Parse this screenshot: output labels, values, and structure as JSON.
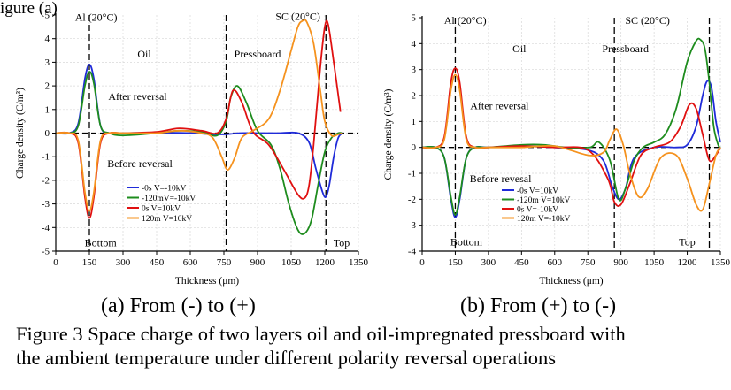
{
  "page_top_text": "igure  (a)",
  "captions": {
    "a": "(a) From (-) to (+)",
    "b": "(b) From (+) to (-)",
    "figure_line1": "Figure 3 Space charge of two layers oil and oil-impregnated pressboard with",
    "figure_line2": "the ambient temperature under different polarity reversal operations"
  },
  "colors": {
    "blue": "#1f2bd9",
    "green": "#1e8c1e",
    "red": "#e01010",
    "orange": "#f5921e"
  },
  "chart_data": [
    {
      "type": "line",
      "panel": "a",
      "xlabel": "Thickness (μm)",
      "ylabel": "Charge density (C/m³)",
      "xlim": [
        0,
        1350
      ],
      "ylim": [
        -5,
        5
      ],
      "xticks": [
        0,
        150,
        300,
        450,
        600,
        750,
        900,
        1050,
        1200,
        1350
      ],
      "yticks": [
        -5,
        -4,
        -3,
        -2,
        -1,
        0,
        1,
        2,
        3,
        4,
        5
      ],
      "vlines": [
        150,
        760,
        1205
      ],
      "annotations": [
        {
          "text": "Al (20°C)",
          "x": 180,
          "y": 4.9
        },
        {
          "text": "SC (20°C)",
          "x": 1080,
          "y": 4.95
        },
        {
          "text": "Oil",
          "x": 395,
          "y": 3.35
        },
        {
          "text": "Pressboard",
          "x": 900,
          "y": 3.35
        },
        {
          "text": "After reversal",
          "x": 365,
          "y": 1.55
        },
        {
          "text": "Before reversal",
          "x": 375,
          "y": -1.3
        },
        {
          "text": "Bottom",
          "x": 200,
          "y": -4.65
        },
        {
          "text": "Top",
          "x": 1275,
          "y": -4.65
        }
      ],
      "legend": {
        "placement": "bottom-center",
        "entries": [
          "-0s    V=-10kV",
          "-120mV=-10kV",
          "0s     V=10kV",
          "120m  V=10kV"
        ]
      },
      "series": [
        {
          "color": "blue",
          "x": [
            0,
            60,
            100,
            130,
            150,
            170,
            200,
            240,
            300,
            450,
            600,
            700,
            760,
            820,
            900,
            1000,
            1080,
            1130,
            1160,
            1190,
            1205,
            1220,
            1240,
            1260,
            1280
          ],
          "y": [
            0,
            0,
            0.4,
            2.3,
            2.9,
            2.3,
            0.3,
            0,
            0,
            0.02,
            0,
            -0.05,
            -0.05,
            0,
            0,
            0,
            0,
            -0.4,
            -1.5,
            -2.5,
            -2.7,
            -2.2,
            -1.0,
            -0.2,
            0
          ]
        },
        {
          "color": "green",
          "x": [
            0,
            60,
            100,
            130,
            150,
            170,
            200,
            240,
            300,
            450,
            550,
            650,
            720,
            760,
            780,
            810,
            850,
            900,
            960,
            1000,
            1040,
            1080,
            1110,
            1140,
            1170,
            1200,
            1230,
            1260,
            1280
          ],
          "y": [
            0,
            0,
            0.3,
            2.0,
            2.6,
            2.1,
            0.3,
            0,
            -0.1,
            0,
            0.1,
            0.05,
            -0.1,
            0.5,
            1.5,
            2.0,
            1.3,
            0.1,
            -0.5,
            -1.5,
            -3.0,
            -4.1,
            -4.25,
            -3.7,
            -2.2,
            -0.8,
            -0.2,
            0,
            0
          ]
        },
        {
          "color": "red",
          "x": [
            0,
            60,
            100,
            130,
            150,
            170,
            200,
            240,
            300,
            450,
            550,
            650,
            720,
            760,
            790,
            830,
            880,
            950,
            1020,
            1080,
            1110,
            1130,
            1150,
            1180,
            1200,
            1215,
            1240,
            1270
          ],
          "y": [
            0,
            0,
            -0.4,
            -2.7,
            -3.6,
            -2.7,
            -0.4,
            0,
            0,
            0.05,
            0.2,
            0.1,
            0,
            0.6,
            1.8,
            1.3,
            0.05,
            -0.5,
            -1.6,
            -2.6,
            -2.75,
            -2.2,
            -0.5,
            2.8,
            4.5,
            4.6,
            3.0,
            0.9
          ]
        },
        {
          "color": "orange",
          "x": [
            0,
            60,
            100,
            130,
            150,
            170,
            200,
            240,
            300,
            450,
            550,
            650,
            700,
            740,
            760,
            775,
            800,
            830,
            880,
            950,
            1000,
            1050,
            1080,
            1100,
            1120,
            1150,
            1180,
            1200,
            1230,
            1260,
            1280
          ],
          "y": [
            0,
            0,
            -0.3,
            -2.5,
            -3.3,
            -2.5,
            -0.3,
            0,
            0,
            0,
            0.1,
            0,
            -0.2,
            -1.0,
            -1.5,
            -1.5,
            -1.0,
            -0.2,
            0.1,
            0.6,
            1.8,
            3.5,
            4.5,
            4.75,
            4.7,
            3.8,
            1.8,
            0.5,
            -0.1,
            -0.05,
            0
          ]
        }
      ]
    },
    {
      "type": "line",
      "panel": "b",
      "xlabel": "Thickness (μm)",
      "ylabel": "Charge density (C/m³)",
      "xlim": [
        0,
        1350
      ],
      "ylim": [
        -4,
        5
      ],
      "xticks": [
        0,
        150,
        300,
        450,
        600,
        750,
        900,
        1050,
        1200,
        1350
      ],
      "yticks": [
        -4,
        -3,
        -2,
        -1,
        0,
        1,
        2,
        3,
        4,
        5
      ],
      "vlines": [
        150,
        870,
        1300
      ],
      "annotations": [
        {
          "text": "Al (20°C)",
          "x": 195,
          "y": 4.9
        },
        {
          "text": "SC (20°C)",
          "x": 1020,
          "y": 4.9
        },
        {
          "text": "Oil",
          "x": 440,
          "y": 3.8
        },
        {
          "text": "Pressboard",
          "x": 920,
          "y": 3.8
        },
        {
          "text": "After reversal",
          "x": 350,
          "y": 1.6
        },
        {
          "text": "Before revesal",
          "x": 355,
          "y": -1.2
        },
        {
          "text": "Bottom",
          "x": 200,
          "y": -3.65
        },
        {
          "text": "Top",
          "x": 1200,
          "y": -3.65
        }
      ],
      "legend": {
        "placement": "bottom-center",
        "entries": [
          "-0s    V=10kV",
          "-120m V=10kV",
          "0s     V=-10kV",
          "120m V=-10kV"
        ]
      },
      "series": [
        {
          "color": "blue",
          "x": [
            0,
            60,
            100,
            130,
            150,
            170,
            200,
            240,
            300,
            450,
            600,
            750,
            820,
            860,
            890,
            920,
            960,
            1050,
            1150,
            1200,
            1240,
            1270,
            1290,
            1310,
            1330,
            1350
          ],
          "y": [
            0,
            0,
            -0.4,
            -2.0,
            -2.7,
            -2.0,
            -0.4,
            0,
            0,
            0.05,
            0,
            -0.1,
            -0.5,
            -1.5,
            -2.0,
            -1.6,
            -0.4,
            0,
            0,
            0.1,
            0.8,
            2.0,
            2.55,
            2.3,
            1.0,
            0.2
          ]
        },
        {
          "color": "green",
          "x": [
            0,
            60,
            100,
            130,
            150,
            170,
            200,
            240,
            300,
            450,
            550,
            650,
            760,
            800,
            850,
            890,
            920,
            960,
            1000,
            1050,
            1100,
            1150,
            1200,
            1240,
            1260,
            1280,
            1300,
            1320,
            1340,
            1350
          ],
          "y": [
            0,
            0,
            -0.4,
            -1.9,
            -2.6,
            -1.9,
            -0.4,
            0,
            0,
            0.1,
            0.1,
            0,
            0,
            0.2,
            -0.5,
            -2.0,
            -1.6,
            -0.5,
            0,
            0.2,
            0.5,
            1.5,
            3.3,
            4.1,
            4.15,
            3.8,
            2.5,
            0.8,
            0.1,
            0
          ]
        },
        {
          "color": "red",
          "x": [
            0,
            60,
            100,
            130,
            150,
            170,
            200,
            240,
            300,
            450,
            600,
            750,
            840,
            870,
            900,
            940,
            990,
            1050,
            1120,
            1170,
            1210,
            1240,
            1270,
            1300,
            1330,
            1350
          ],
          "y": [
            0,
            0,
            0.4,
            2.5,
            3.05,
            2.5,
            0.4,
            0,
            0,
            0.05,
            0,
            -0.1,
            -1.2,
            -2.1,
            -2.2,
            -1.4,
            -0.3,
            0,
            0.2,
            0.8,
            1.65,
            1.5,
            0.5,
            -0.5,
            -0.3,
            0
          ]
        },
        {
          "color": "orange",
          "x": [
            0,
            60,
            100,
            130,
            150,
            170,
            200,
            240,
            300,
            450,
            600,
            750,
            820,
            850,
            880,
            910,
            940,
            980,
            1020,
            1080,
            1150,
            1200,
            1240,
            1270,
            1300,
            1330,
            1350
          ],
          "y": [
            0,
            0,
            0.3,
            2.2,
            2.8,
            2.2,
            0.3,
            0,
            0,
            0,
            0.05,
            -0.3,
            -0.2,
            0.3,
            0.7,
            0.1,
            -1.0,
            -1.9,
            -1.6,
            -0.4,
            -0.3,
            -1.2,
            -2.2,
            -2.4,
            -1.4,
            -0.3,
            0
          ]
        }
      ]
    }
  ]
}
